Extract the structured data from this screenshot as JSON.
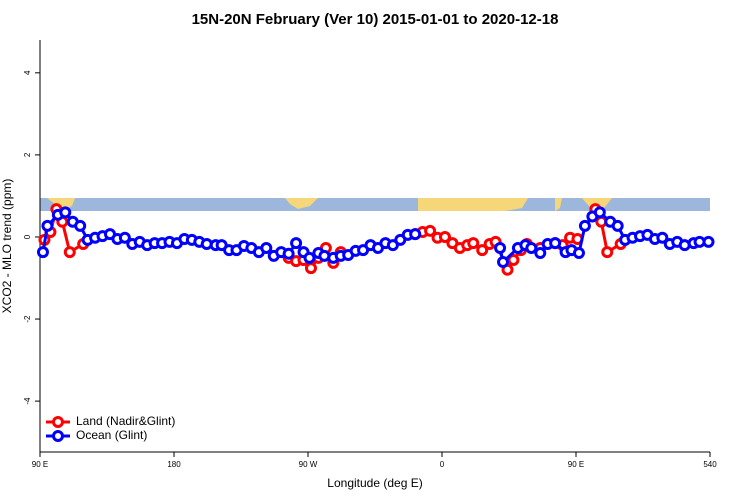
{
  "chart_data": {
    "type": "line",
    "title": "15N-20N February (Ver 10)   2015-01-01 to 2020-12-18",
    "xlabel": "Longitude (deg E)",
    "ylabel": "XCO2 - MLO trend (ppm)",
    "xlim": [
      90,
      540
    ],
    "ylim": [
      -5.24,
      4.8
    ],
    "xticks": [
      {
        "value": 90,
        "label": "90 E"
      },
      180,
      {
        "value": 270,
        "label": "90 W"
      },
      {
        "value": 360,
        "label": "0"
      },
      {
        "value": 450,
        "label": "90 E"
      },
      540
    ],
    "yticks": [
      -4,
      -2,
      0,
      2,
      4
    ],
    "legend": "bottom-left",
    "series": [
      {
        "name": "Land (Nadir&Glint)",
        "color": "#ff0000",
        "x": [
          93,
          97,
          101,
          105,
          110,
          119,
          null,
          257,
          262,
          267,
          272,
          277,
          282,
          287,
          292,
          null,
          342,
          347,
          352,
          357,
          362,
          367,
          372,
          377,
          381,
          387,
          392,
          396,
          404,
          408,
          413,
          417,
          426,
          436,
          441,
          446,
          451,
          null,
          463,
          467,
          471,
          480
        ],
        "values": [
          -0.07,
          0.12,
          0.68,
          0.37,
          -0.37,
          -0.17,
          null,
          -0.51,
          -0.59,
          -0.56,
          -0.76,
          -0.51,
          -0.27,
          -0.63,
          -0.37,
          null,
          0.07,
          0.12,
          0.15,
          -0.02,
          0,
          -0.15,
          -0.27,
          -0.2,
          -0.15,
          -0.32,
          -0.17,
          -0.12,
          -0.8,
          -0.56,
          -0.32,
          -0.17,
          -0.27,
          -0.15,
          -0.2,
          -0.02,
          -0.05,
          null,
          0.68,
          0.37,
          -0.37,
          -0.17
        ]
      },
      {
        "name": "Ocean (Glint)",
        "color": "#0000ff",
        "x": [
          92,
          95,
          102,
          107,
          112,
          117,
          122,
          127,
          132,
          137,
          142,
          147,
          152,
          157,
          162,
          167,
          172,
          177,
          182,
          187,
          192,
          197,
          202,
          208,
          212,
          217,
          222,
          227,
          232,
          237,
          242,
          247,
          252,
          257,
          262,
          267,
          271,
          277,
          281,
          287,
          292,
          297,
          302,
          307,
          312,
          317,
          322,
          327,
          332,
          337,
          342,
          null,
          399,
          401,
          411,
          416,
          420,
          426,
          431,
          436,
          443,
          447,
          452,
          456,
          461,
          466,
          473,
          478,
          483,
          488,
          493,
          498,
          503,
          508,
          513,
          518,
          523,
          529,
          533,
          539
        ],
        "values": [
          -0.37,
          0.27,
          0.54,
          0.6,
          0.37,
          0.27,
          -0.07,
          -0.02,
          0.02,
          0.07,
          -0.05,
          -0.02,
          -0.17,
          -0.12,
          -0.2,
          -0.15,
          -0.15,
          -0.12,
          -0.15,
          -0.05,
          -0.07,
          -0.12,
          -0.17,
          -0.2,
          -0.2,
          -0.32,
          -0.32,
          -0.22,
          -0.27,
          -0.37,
          -0.27,
          -0.46,
          -0.37,
          -0.41,
          -0.15,
          -0.37,
          -0.51,
          -0.39,
          -0.46,
          -0.51,
          -0.46,
          -0.44,
          -0.34,
          -0.32,
          -0.2,
          -0.27,
          -0.15,
          -0.2,
          -0.07,
          0.05,
          0.07,
          null,
          -0.27,
          -0.61,
          -0.27,
          -0.2,
          -0.27,
          -0.39,
          -0.17,
          -0.15,
          -0.37,
          -0.32,
          -0.39,
          0.27,
          0.5,
          0.6,
          0.37,
          0.27,
          -0.07,
          -0.02,
          0.02,
          0.05,
          -0.05,
          -0.02,
          -0.17,
          -0.12,
          -0.2,
          -0.15,
          -0.12,
          -0.12
        ]
      }
    ]
  }
}
